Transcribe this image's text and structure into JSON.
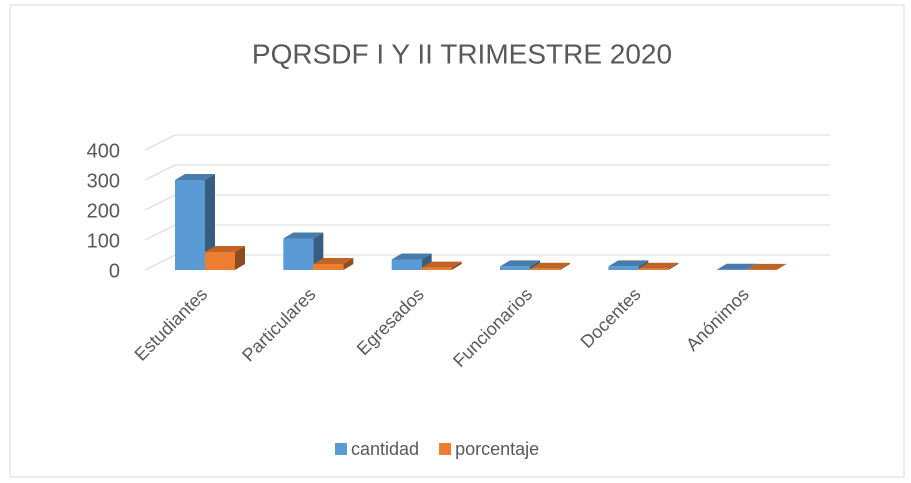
{
  "chart_data": {
    "type": "bar3d",
    "title": "PQRSDF I Y II TRIMESTRE 2020",
    "categories": [
      "Estudiantes",
      "Particulares",
      "Egresados",
      "Funcionarios",
      "Docentes",
      "Anónimos"
    ],
    "series": [
      {
        "name": "cantidad",
        "color": "#5b9bd5",
        "values": [
          300,
          105,
          35,
          12,
          12,
          1
        ]
      },
      {
        "name": "porcentaje",
        "color": "#ed7d31",
        "values": [
          60,
          20,
          8,
          4,
          4,
          0.5
        ]
      }
    ],
    "ylim": [
      0,
      400
    ],
    "yticks": [
      0,
      100,
      200,
      300,
      400
    ],
    "grid": true,
    "legend": "bottom"
  }
}
